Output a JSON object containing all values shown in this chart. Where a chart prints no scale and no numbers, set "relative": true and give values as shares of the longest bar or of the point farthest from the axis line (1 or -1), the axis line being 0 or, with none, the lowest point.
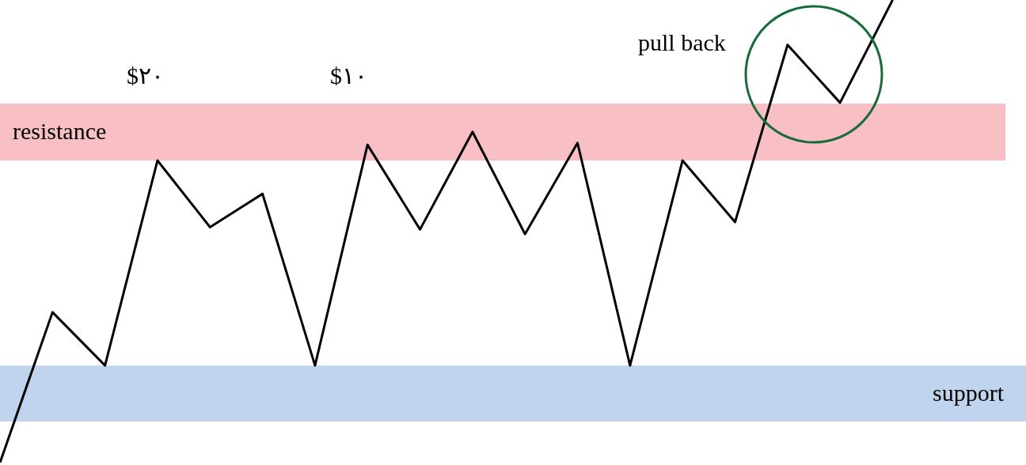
{
  "chart_data": {
    "type": "line",
    "relative": true,
    "marker": "none",
    "line_style": "solid",
    "categories": [
      null,
      null,
      null,
      null,
      null,
      null,
      null,
      null,
      null,
      null,
      null,
      null,
      null,
      null,
      null,
      null,
      null,
      null
    ],
    "series": [
      {
        "color": "#000000",
        "values": [
          0,
          0.325,
          0.21,
          0.653,
          0.509,
          0.581,
          0.21,
          0.687,
          0.504,
          0.715,
          0.494,
          0.691,
          0.21,
          0.653,
          0.52,
          0.903,
          0.778,
          1.0
        ]
      }
    ],
    "bands": [
      {
        "axis": "y",
        "from": 0.653,
        "to": 0.776,
        "label": "resistance",
        "color": "#f8c0c4"
      },
      {
        "axis": "y",
        "from": 0.089,
        "to": 0.21,
        "label": "support",
        "color": "#c0d4ee"
      }
    ],
    "annotations": [
      "$٢٠",
      "$١٠",
      "pull back"
    ]
  }
}
